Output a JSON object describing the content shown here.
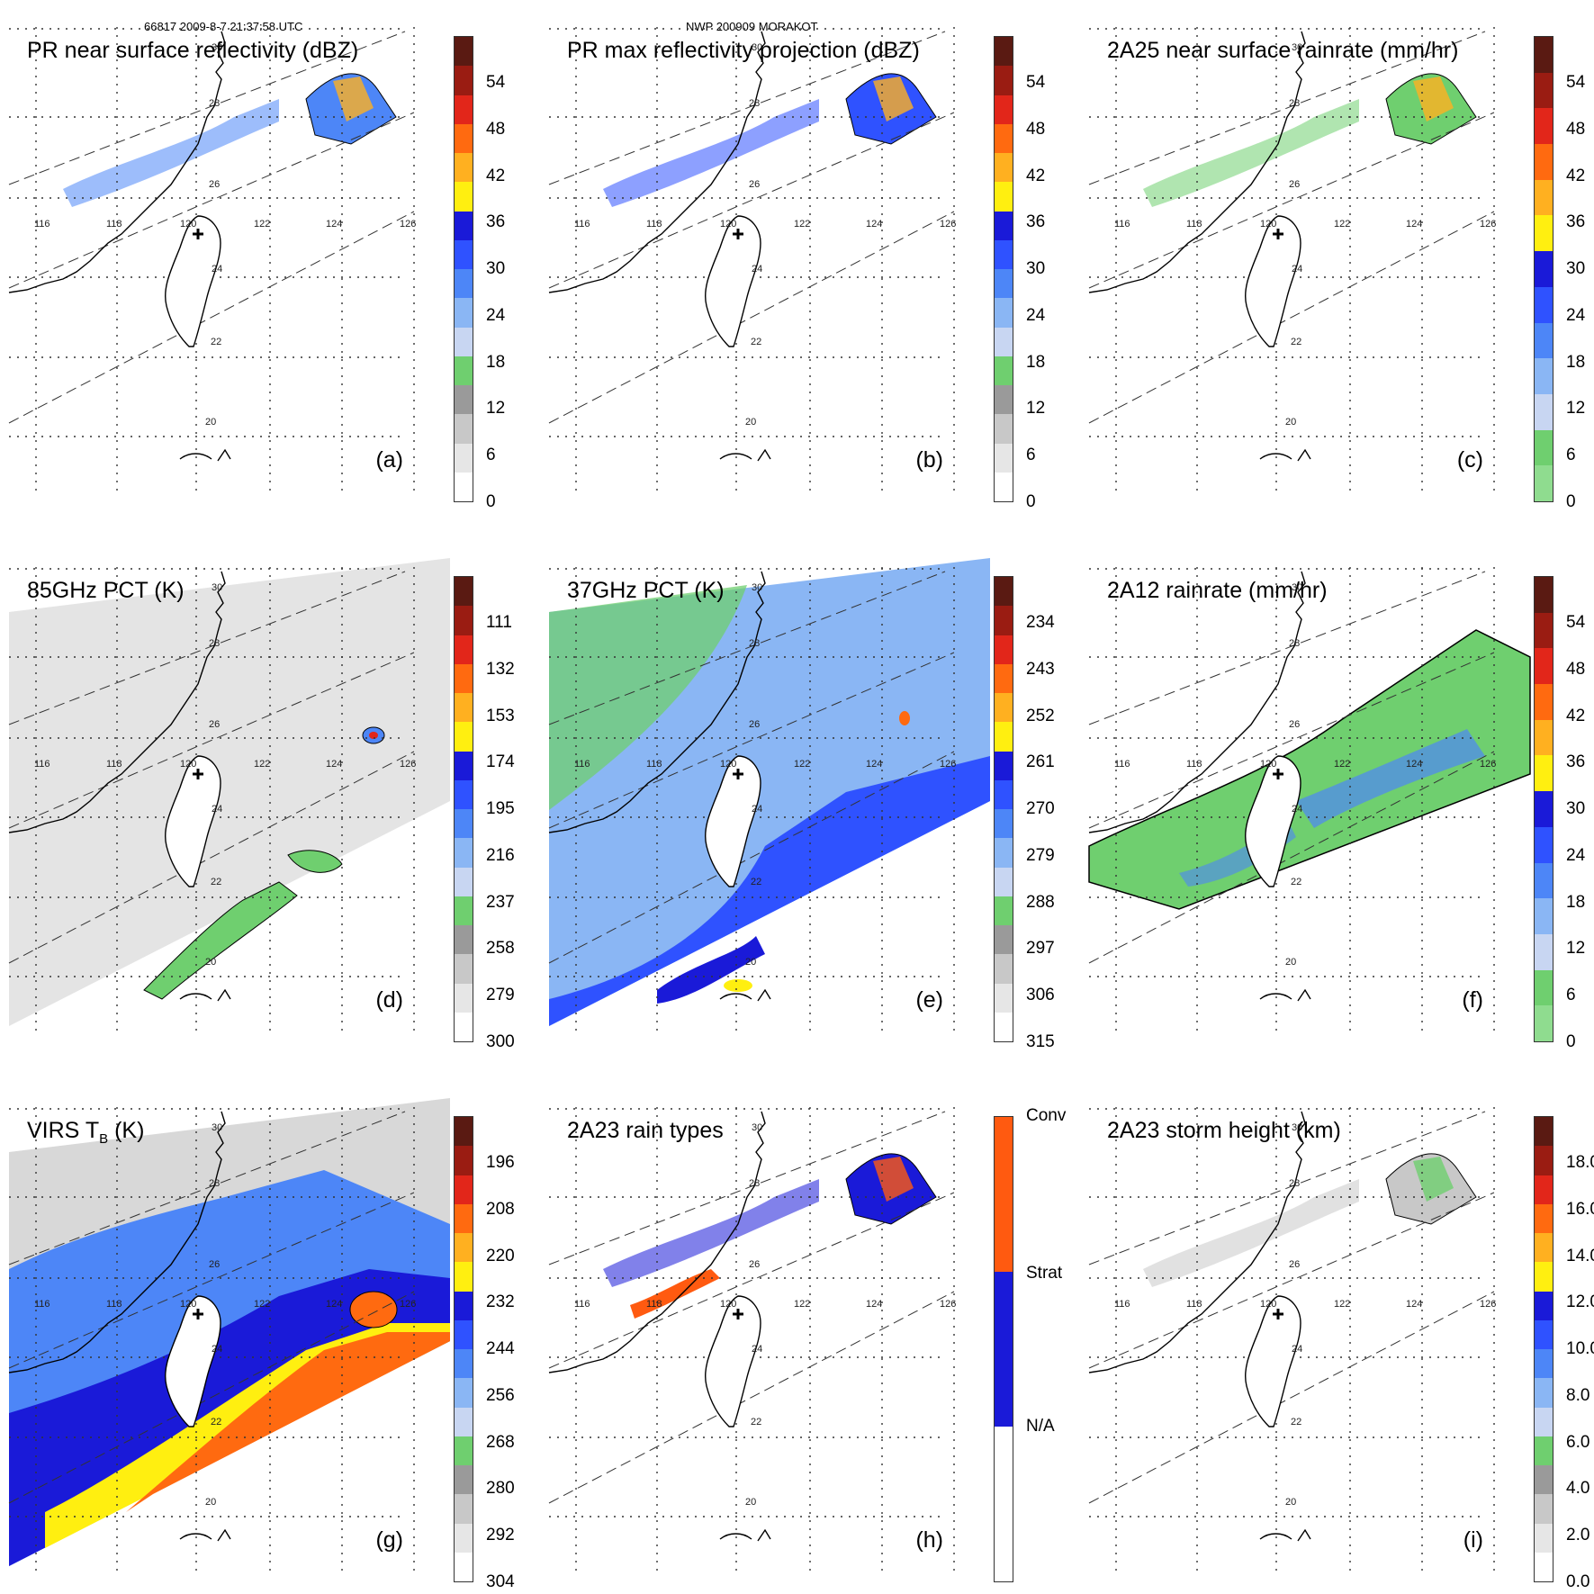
{
  "header": {
    "orbit": "66817 2009-8-7 21:37:58 UTC",
    "case": "NWP 200909 MORAKOT"
  },
  "lon_labels": [
    "116",
    "118",
    "120",
    "122",
    "124",
    "126"
  ],
  "lat_labels": [
    "30",
    "28",
    "26",
    "24",
    "22",
    "20"
  ],
  "panels": [
    {
      "id": "a",
      "title": "PR near surface reflectivity (dBZ)",
      "label": "(a)",
      "ticks": [
        "54",
        "48",
        "42",
        "36",
        "30",
        "24",
        "18",
        "12",
        "6",
        "0"
      ],
      "scheme": "dbz"
    },
    {
      "id": "b",
      "title": "PR max reflectivity projection (dBZ)",
      "label": "(b)",
      "ticks": [
        "54",
        "48",
        "42",
        "36",
        "30",
        "24",
        "18",
        "12",
        "6",
        "0"
      ],
      "scheme": "dbz"
    },
    {
      "id": "c",
      "title": "2A25 near surface rainrate (mm/hr)",
      "label": "(c)",
      "ticks": [
        "54",
        "48",
        "42",
        "36",
        "30",
        "24",
        "18",
        "12",
        "6",
        "0"
      ],
      "scheme": "rain"
    },
    {
      "id": "d",
      "title": "85GHz PCT (K)",
      "label": "(d)",
      "ticks": [
        "111",
        "132",
        "153",
        "174",
        "195",
        "216",
        "237",
        "258",
        "279",
        "300"
      ],
      "scheme": "dbz"
    },
    {
      "id": "e",
      "title": "37GHz PCT (K)",
      "label": "(e)",
      "ticks": [
        "234",
        "243",
        "252",
        "261",
        "270",
        "279",
        "288",
        "297",
        "306",
        "315"
      ],
      "scheme": "dbz"
    },
    {
      "id": "f",
      "title": "2A12 rainrate (mm/hr)",
      "label": "(f)",
      "ticks": [
        "54",
        "48",
        "42",
        "36",
        "30",
        "24",
        "18",
        "12",
        "6",
        "0"
      ],
      "scheme": "rain"
    },
    {
      "id": "g",
      "title": "VIRS T",
      "title_sub": "B",
      "title_rest": " (K)",
      "label": "(g)",
      "ticks": [
        "196",
        "208",
        "220",
        "232",
        "244",
        "256",
        "268",
        "280",
        "292",
        "304"
      ],
      "scheme": "dbz"
    },
    {
      "id": "h",
      "title": "2A23 rain types",
      "label": "(h)",
      "ticks": [
        "Conv",
        "Strat",
        "N/A"
      ],
      "scheme": "types"
    },
    {
      "id": "i",
      "title": "2A23 storm height (km)",
      "label": "(i)",
      "ticks": [
        "18.0",
        "16.0",
        "14.0",
        "12.0",
        "10.0",
        "8.0",
        "6.0",
        "4.0",
        "2.0",
        "0.0"
      ],
      "scheme": "dbz"
    }
  ],
  "colors": {
    "dbz": [
      "#5a1a12",
      "#9a1c12",
      "#e2261a",
      "#ff6a10",
      "#ffb020",
      "#ffef10",
      "#1a1ad8",
      "#2f52ff",
      "#4d86f7",
      "#8ab6f4",
      "#c8d6f2",
      "#6fcf6f",
      "#9a9a9a",
      "#c8c8c8",
      "#e6e6e6",
      "#ffffff"
    ],
    "rain": [
      "#5a1a12",
      "#9a1c12",
      "#e2261a",
      "#ff6a10",
      "#ffb020",
      "#ffef10",
      "#1a1ad8",
      "#2f52ff",
      "#4d86f7",
      "#8ab6f4",
      "#c8d6f2",
      "#6fcf6f",
      "#8fdc8f"
    ],
    "types": [
      "#ff5a10",
      "#1a1ad8",
      "#ffffff"
    ],
    "grid": "#333333",
    "land": "#000000"
  }
}
